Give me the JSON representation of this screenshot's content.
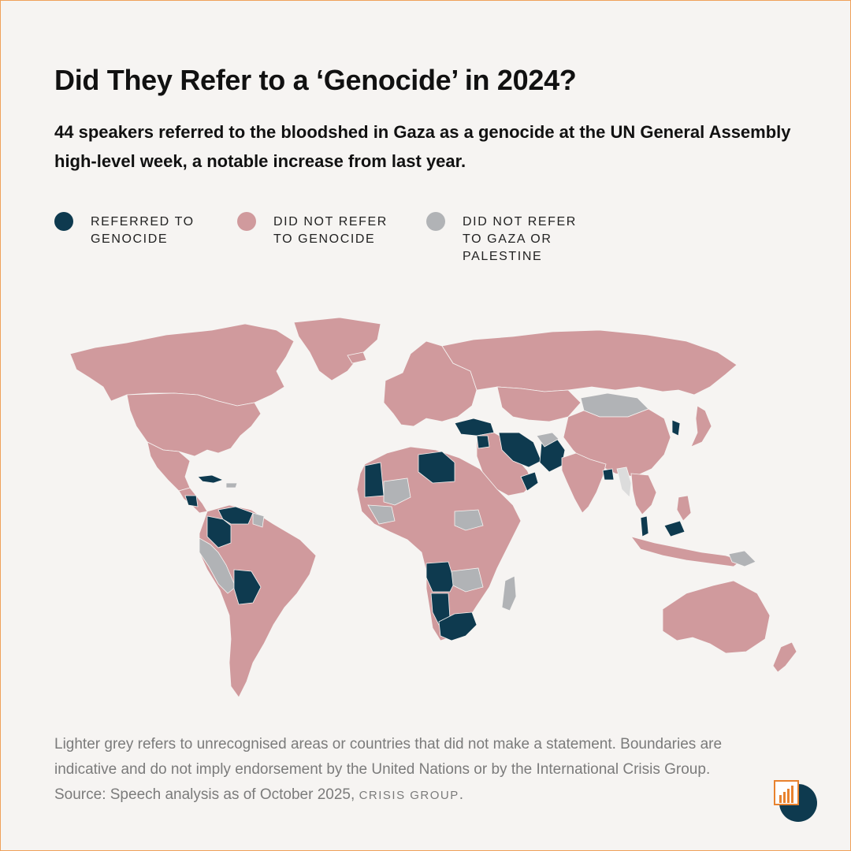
{
  "title": "Did They Refer to a ‘Genocide’ in 2024?",
  "subtitle": "44 speakers referred to the bloodshed in Gaza as a genocide at the UN General Assembly high-level week, a notable increase from last year.",
  "legend": [
    {
      "label": "REFERRED TO\nGENOCIDE",
      "color": "#0e3a4f"
    },
    {
      "label": "DID NOT REFER\nTO GENOCIDE",
      "color": "#d09a9d"
    },
    {
      "label": "DID NOT REFER\nTO GAZA OR\nPALESTINE",
      "color": "#b1b3b6"
    }
  ],
  "colors": {
    "background": "#f6f4f2",
    "referred": "#0e3a4f",
    "not_referred": "#d09a9d",
    "no_mention": "#b1b3b6",
    "unrecognised": "#dcdcdc",
    "border_accent": "#f0a15a",
    "logo_orange": "#e8822e"
  },
  "footnote": {
    "text": "Lighter grey refers to unrecognised areas or countries that did not make a statement. Boundaries are indicative and do not imply endorsement by the United Nations or by the International Crisis Group. Source: Speech analysis as of October 2025,",
    "brand": "CRISIS GROUP",
    "end": "."
  },
  "logo": {
    "icon": "crisis-group-logo-icon"
  }
}
